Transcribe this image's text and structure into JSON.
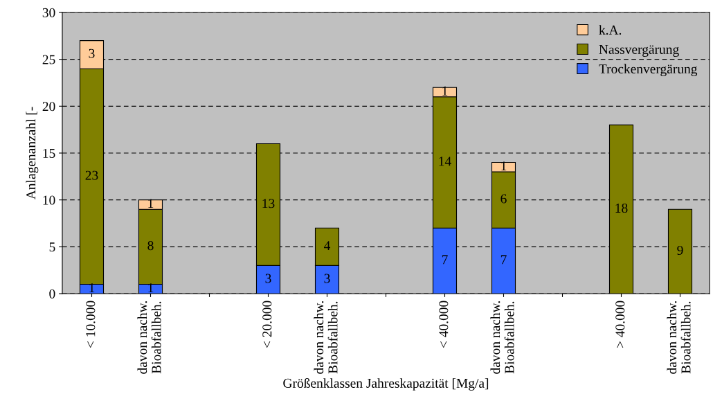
{
  "chart_data": {
    "type": "bar",
    "stacked": true,
    "xlabel": "Größenklassen Jahreskapazität [Mg/a]",
    "ylabel": "Anlagenanzahl [-",
    "categories": [
      "< 10.000",
      "davon nachw.\nBioabfallbeh.",
      null,
      "< 20.000",
      "davon nachw.\nBioabfallbeh.",
      null,
      "< 40.000",
      "davon nachw.\nBioabfallbeh.",
      null,
      "> 40.000",
      "davon nachw.\nBioabfallbeh."
    ],
    "series": [
      {
        "name": "Trockenvergärung",
        "color": "#3366ff",
        "values": [
          1,
          1,
          null,
          3,
          3,
          null,
          7,
          7,
          null,
          null,
          null
        ]
      },
      {
        "name": "Nassvergärung",
        "color": "#808000",
        "values": [
          23,
          8,
          null,
          13,
          4,
          null,
          14,
          6,
          null,
          18,
          9
        ]
      },
      {
        "name": "k.A.",
        "color": "#ffcc99",
        "values": [
          3,
          1,
          null,
          null,
          null,
          null,
          1,
          1,
          null,
          null,
          null
        ]
      }
    ],
    "ylim": [
      0,
      30
    ],
    "yticks": [
      0,
      5,
      10,
      15,
      20,
      25,
      30
    ],
    "grid": "y",
    "legend": "top right",
    "data_labels": true
  }
}
